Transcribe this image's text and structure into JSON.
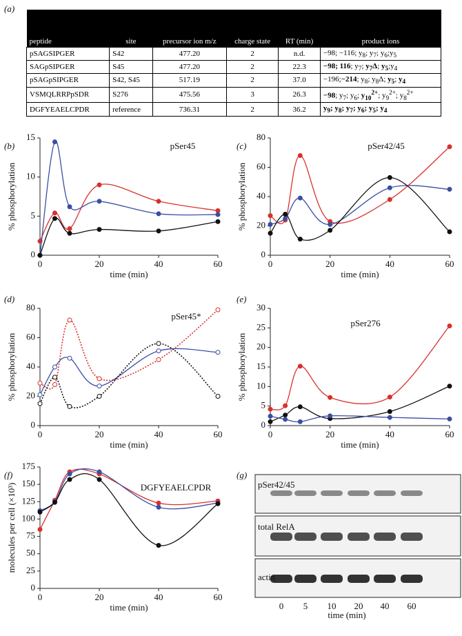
{
  "panel_labels": [
    "(a)",
    "(b)",
    "(c)",
    "(d)",
    "(e)",
    "(f)",
    "(g)"
  ],
  "table": {
    "header": [
      "peptide",
      "site",
      "precursor ion m/z",
      "charge state",
      "RT (min)",
      "product ions"
    ],
    "rows": [
      [
        "pSAGSIPGER",
        "S42",
        "477.20",
        "2",
        "n.d.",
        [
          [
            "−98; −116; y",
            ""
          ],
          [
            "8",
            "s"
          ],
          [
            "; y",
            ""
          ],
          [
            "7",
            "s"
          ],
          [
            "; y",
            ""
          ],
          [
            "6",
            "s"
          ],
          [
            ";y",
            ""
          ],
          [
            "5",
            "s"
          ]
        ]
      ],
      [
        "SAGpSIPGER",
        "S45",
        "477.20",
        "2",
        "22.3",
        [
          [
            "−98; 116",
            "b"
          ],
          [
            "; y",
            ""
          ],
          [
            "7",
            "s"
          ],
          [
            "; ",
            ""
          ],
          [
            "y",
            "b"
          ],
          [
            "7",
            "bs"
          ],
          [
            "Δ",
            "b"
          ],
          [
            "; ",
            ""
          ],
          [
            "y",
            "b"
          ],
          [
            "5",
            "bs"
          ],
          [
            ";y",
            ""
          ],
          [
            "4",
            "s"
          ]
        ]
      ],
      [
        "pSAGpSIPGER",
        "S42, S45",
        "517.19",
        "2",
        "37.0",
        [
          [
            "−196;",
            ""
          ],
          [
            "−214",
            "b"
          ],
          [
            "; y",
            ""
          ],
          [
            "8",
            "s"
          ],
          [
            "; y",
            ""
          ],
          [
            "8",
            "s"
          ],
          [
            "Δ; ",
            ""
          ],
          [
            "y",
            "b"
          ],
          [
            "5",
            "bs"
          ],
          [
            "; ",
            ""
          ],
          [
            "y",
            "b"
          ],
          [
            "4",
            "bs"
          ]
        ]
      ],
      [
        "VSMQLRRPpSDR",
        "S276",
        "475.56",
        "3",
        "26.3",
        [
          [
            "−98",
            "b"
          ],
          [
            "; y",
            ""
          ],
          [
            "7",
            "s"
          ],
          [
            "; y",
            ""
          ],
          [
            "6",
            "s"
          ],
          [
            "; ",
            ""
          ],
          [
            "y",
            "b"
          ],
          [
            "10",
            "bs"
          ],
          [
            "2+",
            "bp"
          ],
          [
            "; y",
            ""
          ],
          [
            "9",
            "s"
          ],
          [
            "2+",
            "p"
          ],
          [
            "; y",
            ""
          ],
          [
            "8",
            "s"
          ],
          [
            "2+",
            "p"
          ]
        ]
      ],
      [
        "DGFYEAELCPDR",
        "reference",
        "736.31",
        "2",
        "36.2",
        [
          [
            "y",
            "b"
          ],
          [
            "9",
            "bs"
          ],
          [
            "; y",
            "b"
          ],
          [
            "8",
            "bs"
          ],
          [
            "; y",
            "b"
          ],
          [
            "7",
            "bs"
          ],
          [
            "; y",
            "b"
          ],
          [
            "6",
            "bs"
          ],
          [
            "; y",
            "b"
          ],
          [
            "5",
            "bs"
          ],
          [
            "; y",
            "b"
          ],
          [
            "4",
            "bs"
          ]
        ]
      ]
    ]
  },
  "chart_data": [
    {
      "type": "line",
      "title": "pSer45",
      "xlabel": "time (min)",
      "ylabel": "% phosphorylation",
      "x": [
        0,
        5,
        10,
        20,
        40,
        60
      ],
      "xlim": [
        0,
        60
      ],
      "xticks": [
        0,
        20,
        40,
        60
      ],
      "ylim": [
        0,
        15
      ],
      "yticks": [
        0,
        5,
        10,
        15
      ],
      "series": [
        {
          "color": "#d8312c",
          "values": [
            1.8,
            5.4,
            3.4,
            9.0,
            6.9,
            5.7
          ]
        },
        {
          "color": "#3a4ea3",
          "values": [
            0,
            14.5,
            6.2,
            6.9,
            5.3,
            5.2
          ]
        },
        {
          "color": "#111111",
          "values": [
            0,
            4.7,
            2.8,
            3.3,
            3.1,
            4.3
          ]
        }
      ]
    },
    {
      "type": "line",
      "title": "pSer42/45",
      "xlabel": "time (min)",
      "ylabel": "% phosphorylation",
      "x": [
        0,
        5,
        10,
        20,
        40,
        60
      ],
      "xlim": [
        0,
        60
      ],
      "xticks": [
        0,
        20,
        40,
        60
      ],
      "ylim": [
        0,
        80
      ],
      "yticks": [
        0,
        20,
        40,
        60,
        80
      ],
      "series": [
        {
          "color": "#d8312c",
          "values": [
            27,
            24,
            68,
            23,
            38,
            74
          ]
        },
        {
          "color": "#3a4ea3",
          "values": [
            21,
            25,
            39,
            21,
            46,
            45
          ]
        },
        {
          "color": "#111111",
          "values": [
            15,
            28,
            11,
            17,
            53,
            16
          ]
        }
      ]
    },
    {
      "type": "line",
      "title": "pSer45*",
      "xlabel": "time (min)",
      "ylabel": "% phosphorylation",
      "x": [
        0,
        5,
        10,
        20,
        40,
        60
      ],
      "xlim": [
        0,
        60
      ],
      "xticks": [
        0,
        20,
        40,
        60
      ],
      "ylim": [
        0,
        80
      ],
      "yticks": [
        0,
        20,
        40,
        60,
        80
      ],
      "series": [
        {
          "color": "#d8312c",
          "values": [
            29,
            28,
            72,
            32,
            45,
            79
          ],
          "dash": true,
          "marker": "open"
        },
        {
          "color": "#3a4ea3",
          "values": [
            21,
            40,
            46,
            27,
            51,
            50
          ],
          "marker": "open"
        },
        {
          "color": "#111111",
          "values": [
            15,
            33,
            13,
            20,
            56,
            20
          ],
          "dash": true,
          "marker": "open"
        }
      ]
    },
    {
      "type": "line",
      "title": "pSer276",
      "xlabel": "time (min)",
      "ylabel": "% phosphorylation",
      "x": [
        0,
        5,
        10,
        20,
        40,
        60
      ],
      "xlim": [
        0,
        60
      ],
      "xticks": [
        0,
        20,
        40,
        60
      ],
      "ylim": [
        0,
        30
      ],
      "yticks": [
        0,
        5,
        10,
        15,
        20,
        25,
        30
      ],
      "series": [
        {
          "color": "#d8312c",
          "values": [
            4.2,
            5.1,
            15.2,
            7.2,
            7.3,
            25.5
          ]
        },
        {
          "color": "#111111",
          "values": [
            1.0,
            2.7,
            4.8,
            1.8,
            3.6,
            10.1
          ]
        },
        {
          "color": "#3a4ea3",
          "values": [
            2.4,
            1.6,
            1.0,
            2.5,
            2.1,
            1.7
          ]
        }
      ]
    },
    {
      "type": "line",
      "title": "DGFYEAELCPDR",
      "xlabel": "time (min)",
      "ylabel": "molecules per cell (×10³)",
      "x": [
        0,
        5,
        10,
        20,
        40,
        60
      ],
      "xlim": [
        0,
        60
      ],
      "xticks": [
        0,
        20,
        40,
        60
      ],
      "ylim": [
        0,
        175
      ],
      "yticks": [
        0,
        25,
        50,
        75,
        100,
        125,
        150,
        175
      ],
      "series": [
        {
          "color": "#d8312c",
          "values": [
            85,
            127,
            168,
            165,
            123,
            126
          ]
        },
        {
          "color": "#3a4ea3",
          "values": [
            112,
            125,
            165,
            168,
            117,
            123
          ]
        },
        {
          "color": "#111111",
          "values": [
            110,
            124,
            157,
            157,
            62,
            122
          ]
        }
      ]
    }
  ],
  "blot": {
    "rows": [
      "pSer42/45",
      "total RelA",
      "actin"
    ],
    "lanes": [
      "0",
      "5",
      "10",
      "20",
      "40",
      "60"
    ],
    "xlabel": "time (min)"
  }
}
